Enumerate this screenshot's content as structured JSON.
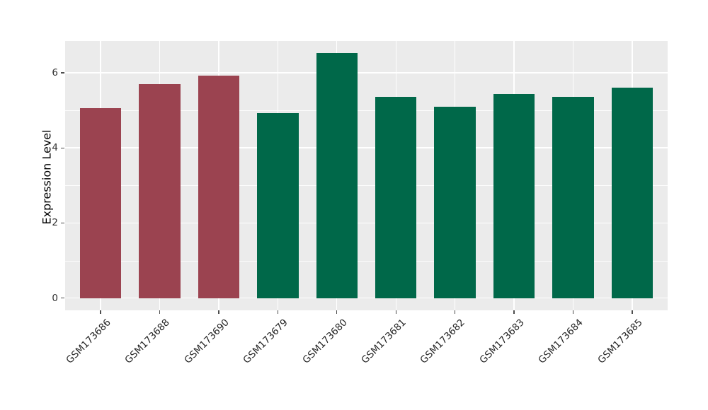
{
  "chart_data": {
    "type": "bar",
    "title": "",
    "xlabel": "",
    "ylabel": "Expression Level",
    "categories": [
      "GSM173686",
      "GSM173688",
      "GSM173690",
      "GSM173679",
      "GSM173680",
      "GSM173681",
      "GSM173682",
      "GSM173683",
      "GSM173684",
      "GSM173685"
    ],
    "values": [
      5.05,
      5.7,
      5.93,
      4.93,
      6.52,
      5.35,
      5.1,
      5.43,
      5.35,
      5.6
    ],
    "groups": [
      "group1",
      "group1",
      "group1",
      "group2",
      "group2",
      "group2",
      "group2",
      "group2",
      "group2",
      "group2"
    ],
    "group_colors": {
      "group1": "#9B4350",
      "group2": "#006849"
    },
    "yticks": [
      0,
      2,
      4,
      6
    ],
    "minor_yticks": [
      1,
      3,
      5
    ],
    "ylim": [
      -0.33,
      6.85
    ],
    "grid": true,
    "legend_position": "none",
    "panel_background": "#EBEBEB",
    "grid_color": "#FFFFFF",
    "figure_background": "#FFFFFF",
    "axis_text_color": "#333333"
  }
}
